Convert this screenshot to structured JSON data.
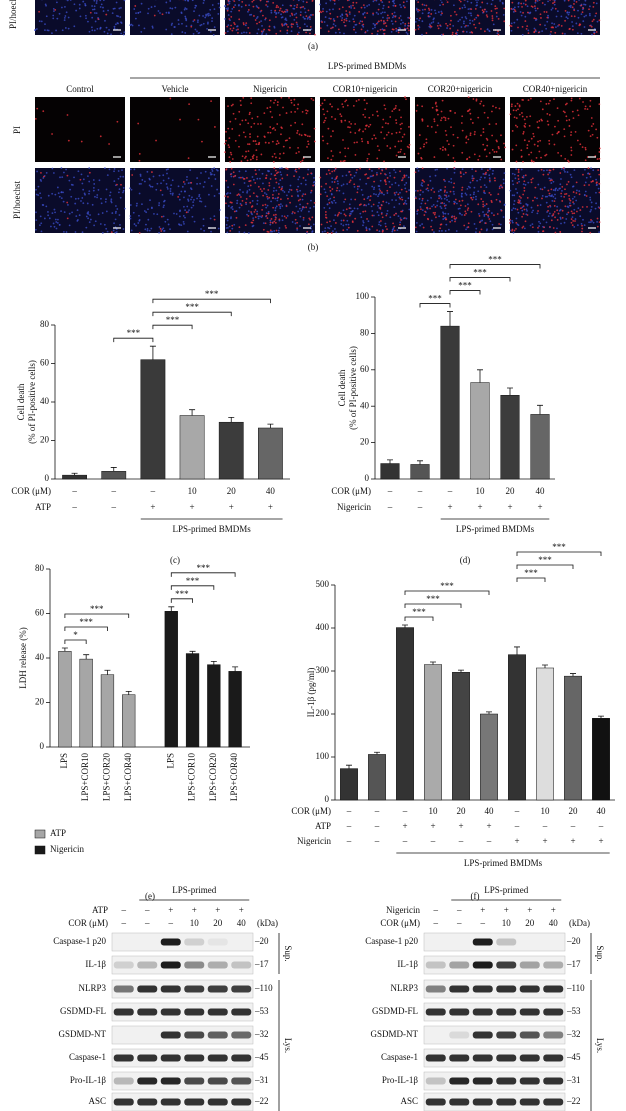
{
  "panel_a": {
    "label": "(a)",
    "row_labels": [
      "PI/hoechst"
    ]
  },
  "panel_b": {
    "label": "(b)",
    "group": "LPS-primed BMDMs",
    "columns": [
      "Control",
      "Vehicle",
      "Nigericin",
      "COR10+nigericin",
      "COR20+nigericin",
      "COR40+nigericin"
    ],
    "row_labels": [
      "PI",
      "PI/hoechst"
    ]
  },
  "chart_data": [
    {
      "type": "bar",
      "label": "(c)",
      "y_label": [
        "Cell death",
        "(% of PI-positive cells)"
      ],
      "values": [
        2,
        4,
        62,
        33,
        29.5,
        26.5
      ],
      "errors": [
        1,
        2,
        7,
        3,
        2.5,
        2
      ],
      "colors": [
        "#333333",
        "#555555",
        "#3a3a3a",
        "#a8a8a8",
        "#3c3c3c",
        "#666666"
      ],
      "ylim": [
        0,
        80
      ],
      "yticks": [
        0,
        20,
        40,
        60,
        80
      ],
      "conditions": [
        {
          "name": "COR (μM)",
          "values": [
            "–",
            "–",
            "–",
            "10",
            "20",
            "40"
          ]
        },
        {
          "name": "ATP",
          "values": [
            "–",
            "–",
            "+",
            "+",
            "+",
            "+"
          ]
        }
      ],
      "group": "LPS-primed BMDMs",
      "significance": [
        {
          "label": "***",
          "bars": [
            1,
            2
          ]
        },
        {
          "label": "***",
          "bars": [
            2,
            3
          ]
        },
        {
          "label": "***",
          "bars": [
            2,
            4
          ]
        },
        {
          "label": "***",
          "bars": [
            2,
            5
          ]
        }
      ]
    },
    {
      "type": "bar",
      "label": "(d)",
      "y_label": [
        "Cell death",
        "(% of PI-positive cells)"
      ],
      "values": [
        8.5,
        8,
        84,
        53,
        46,
        35.5
      ],
      "errors": [
        2,
        2,
        8,
        7,
        4,
        5
      ],
      "colors": [
        "#333333",
        "#555555",
        "#3a3a3a",
        "#a8a8a8",
        "#3c3c3c",
        "#666666"
      ],
      "ylim": [
        0,
        100
      ],
      "yticks": [
        0,
        20,
        40,
        60,
        80,
        100
      ],
      "conditions": [
        {
          "name": "COR (μM)",
          "values": [
            "–",
            "–",
            "–",
            "10",
            "20",
            "40"
          ]
        },
        {
          "name": "Nigericin",
          "values": [
            "–",
            "–",
            "+",
            "+",
            "+",
            "+"
          ]
        }
      ],
      "group": "LPS-primed BMDMs",
      "significance": [
        {
          "label": "***",
          "bars": [
            1,
            2
          ]
        },
        {
          "label": "***",
          "bars": [
            2,
            3
          ]
        },
        {
          "label": "***",
          "bars": [
            2,
            4
          ]
        },
        {
          "label": "***",
          "bars": [
            2,
            5
          ]
        }
      ]
    },
    {
      "type": "grouped_bar",
      "label": "(e)",
      "y_label": [
        "LDH release (%)"
      ],
      "categories": [
        "LPS",
        "LPS+COR10",
        "LPS+COR20",
        "LPS+COR40"
      ],
      "series": [
        {
          "name": "ATP",
          "color": "#a6a6a6",
          "values": [
            43,
            39.5,
            32.5,
            23.5
          ],
          "errors": [
            1.5,
            2,
            2,
            1.5
          ],
          "significance": [
            {
              "label": "*",
              "bars": [
                0,
                1
              ]
            },
            {
              "label": "***",
              "bars": [
                0,
                2
              ]
            },
            {
              "label": "***",
              "bars": [
                0,
                3
              ]
            }
          ]
        },
        {
          "name": "Nigericin",
          "color": "#1a1a1a",
          "values": [
            61,
            42,
            37,
            34
          ],
          "errors": [
            2,
            1,
            1.5,
            2
          ],
          "significance": [
            {
              "label": "***",
              "bars": [
                0,
                1
              ]
            },
            {
              "label": "***",
              "bars": [
                0,
                2
              ]
            },
            {
              "label": "***",
              "bars": [
                0,
                3
              ]
            }
          ]
        }
      ],
      "ylim": [
        0,
        80
      ],
      "yticks": [
        0,
        20,
        40,
        60,
        80
      ],
      "legend": "bottom-left"
    },
    {
      "type": "bar",
      "label": "(f)",
      "y_label": [
        "IL-1β (pg/ml)"
      ],
      "values": [
        73,
        106,
        401,
        315,
        297,
        200,
        338,
        307,
        288,
        190
      ],
      "errors": [
        8,
        5,
        6,
        6,
        5,
        5,
        18,
        7,
        6,
        5
      ],
      "colors": [
        "#333333",
        "#555555",
        "#333333",
        "#aaaaaa",
        "#444444",
        "#777777",
        "#333333",
        "#dddddd",
        "#666666",
        "#111111"
      ],
      "ylim": [
        0,
        500
      ],
      "yticks": [
        0,
        100,
        200,
        300,
        400,
        500
      ],
      "conditions": [
        {
          "name": "COR (μM)",
          "values": [
            "–",
            "–",
            "–",
            "10",
            "20",
            "40",
            "–",
            "10",
            "20",
            "40"
          ]
        },
        {
          "name": "ATP",
          "values": [
            "–",
            "–",
            "+",
            "+",
            "+",
            "+",
            "–",
            "–",
            "–",
            "–"
          ]
        },
        {
          "name": "Nigericin",
          "values": [
            "–",
            "–",
            "–",
            "–",
            "–",
            "–",
            "+",
            "+",
            "+",
            "+"
          ]
        }
      ],
      "group": "LPS-primed BMDMs",
      "significance": [
        {
          "label": "***",
          "bars": [
            2,
            3
          ]
        },
        {
          "label": "***",
          "bars": [
            2,
            4
          ]
        },
        {
          "label": "***",
          "bars": [
            2,
            5
          ]
        },
        {
          "label": "***",
          "bars": [
            6,
            7
          ]
        },
        {
          "label": "***",
          "bars": [
            6,
            8
          ]
        },
        {
          "label": "***",
          "bars": [
            6,
            9
          ]
        }
      ]
    }
  ],
  "blots": [
    {
      "header": "LPS-primed",
      "unit": "(kDa)",
      "conditions": [
        {
          "name": "ATP",
          "values": [
            "–",
            "–",
            "+",
            "+",
            "+",
            "+"
          ]
        },
        {
          "name": "COR (μM)",
          "values": [
            "–",
            "–",
            "–",
            "10",
            "20",
            "40"
          ]
        }
      ],
      "rows": [
        {
          "name": "Caspase-1 p20",
          "kda": "–20"
        },
        {
          "name": "IL-1β",
          "kda": "–17"
        },
        {
          "name": "NLRP3",
          "kda": "–110"
        },
        {
          "name": "GSDMD-FL",
          "kda": "–53"
        },
        {
          "name": "GSDMD-NT",
          "kda": "–32"
        },
        {
          "name": "Caspase-1",
          "kda": "–45"
        },
        {
          "name": "Pro-IL-1β",
          "kda": "–31"
        },
        {
          "name": "ASC",
          "kda": "–22"
        }
      ],
      "sections": [
        "Sup.",
        "Lys."
      ]
    },
    {
      "header": "LPS-primed",
      "unit": "(kDa)",
      "conditions": [
        {
          "name": "Nigericin",
          "values": [
            "–",
            "–",
            "+",
            "+",
            "+",
            "+"
          ]
        },
        {
          "name": "COR (μM)",
          "values": [
            "–",
            "–",
            "–",
            "10",
            "20",
            "40"
          ]
        }
      ],
      "rows": [
        {
          "name": "Caspase-1 p20",
          "kda": "–20"
        },
        {
          "name": "IL-1β",
          "kda": "–17"
        },
        {
          "name": "NLRP3",
          "kda": "–110"
        },
        {
          "name": "GSDMD-FL",
          "kda": "–53"
        },
        {
          "name": "GSDMD-NT",
          "kda": "–32"
        },
        {
          "name": "Caspase-1",
          "kda": "–45"
        },
        {
          "name": "Pro-IL-1β",
          "kda": "–31"
        },
        {
          "name": "ASC",
          "kda": "–22"
        }
      ],
      "sections": [
        "Sup.",
        "Lys."
      ]
    }
  ]
}
